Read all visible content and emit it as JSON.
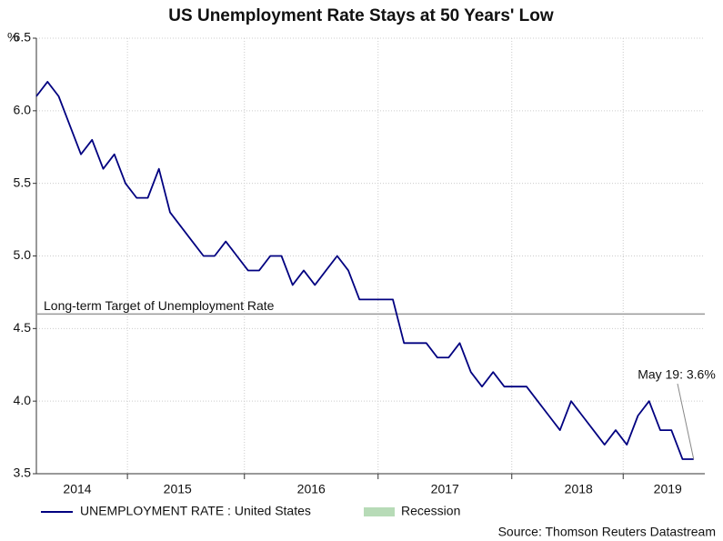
{
  "chart_data": {
    "type": "line",
    "title": "US Unemployment Rate Stays at 50 Years' Low",
    "y_label": "%",
    "categories": [
      null,
      null,
      null,
      null,
      "2014",
      null,
      null,
      null,
      null,
      null,
      null,
      null,
      null,
      "2015",
      null,
      null,
      null,
      null,
      null,
      null,
      null,
      null,
      null,
      null,
      null,
      "2016",
      null,
      null,
      null,
      null,
      null,
      null,
      null,
      null,
      null,
      null,
      null,
      "2017",
      null,
      null,
      null,
      null,
      null,
      null,
      null,
      null,
      null,
      null,
      null,
      "2018",
      null,
      null,
      null,
      null,
      null,
      null,
      null,
      "2019",
      null,
      null
    ],
    "series": [
      {
        "name": "UNEMPLOYMENT RATE : United States",
        "color": "#000080",
        "values": [
          6.1,
          6.2,
          6.1,
          5.9,
          5.7,
          5.8,
          5.6,
          5.7,
          5.5,
          5.4,
          5.4,
          5.6,
          5.3,
          5.2,
          5.1,
          5.0,
          5.0,
          5.1,
          5.0,
          4.9,
          4.9,
          5.0,
          5.0,
          4.8,
          4.9,
          4.8,
          4.9,
          5.0,
          4.9,
          4.7,
          4.7,
          4.7,
          4.7,
          4.4,
          4.4,
          4.4,
          4.3,
          4.3,
          4.4,
          4.2,
          4.1,
          4.2,
          4.1,
          4.1,
          4.1,
          4.0,
          3.9,
          3.8,
          4.0,
          3.9,
          3.8,
          3.7,
          3.8,
          3.7,
          3.9,
          4.0,
          3.8,
          3.8,
          3.6,
          3.6
        ]
      }
    ],
    "recession": {
      "name": "Recession",
      "color": "#b7dbb7"
    },
    "reference_line": {
      "value": 4.6,
      "label": "Long-term Target of Unemployment Rate",
      "color": "#999999"
    },
    "annotation": "May 19: 3.6%",
    "source": "Source: Thomson Reuters Datastream",
    "ylim": [
      3.5,
      6.5
    ],
    "yticks": [
      3.5,
      {
        "value": 4.0,
        "label": "4.0"
      },
      4.5,
      {
        "value": 5.0,
        "label": "5.0"
      },
      5.5,
      {
        "value": 6.0,
        "label": "6.0"
      },
      6.5
    ],
    "grid": true
  }
}
